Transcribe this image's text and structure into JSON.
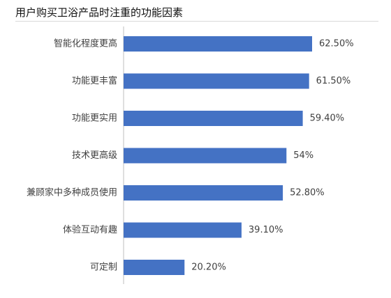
{
  "chart_data": {
    "type": "bar",
    "orientation": "horizontal",
    "title": "用户购买卫浴产品时注重的功能因素",
    "categories": [
      "智能化程度更高",
      "功能更丰富",
      "功能更实用",
      "技术更高级",
      "兼顾家中多种成员使用",
      "体验互动有趣",
      "可定制"
    ],
    "values": [
      62.5,
      61.5,
      59.4,
      54.0,
      52.8,
      39.1,
      20.2
    ],
    "value_labels": [
      "62.50%",
      "61.50%",
      "59.40%",
      "54%",
      "52.80%",
      "39.10%",
      "20.20%"
    ],
    "unit": "%",
    "xlim": [
      0,
      100
    ],
    "bar_color": "#4472c4",
    "grid": false,
    "legend": "none"
  }
}
